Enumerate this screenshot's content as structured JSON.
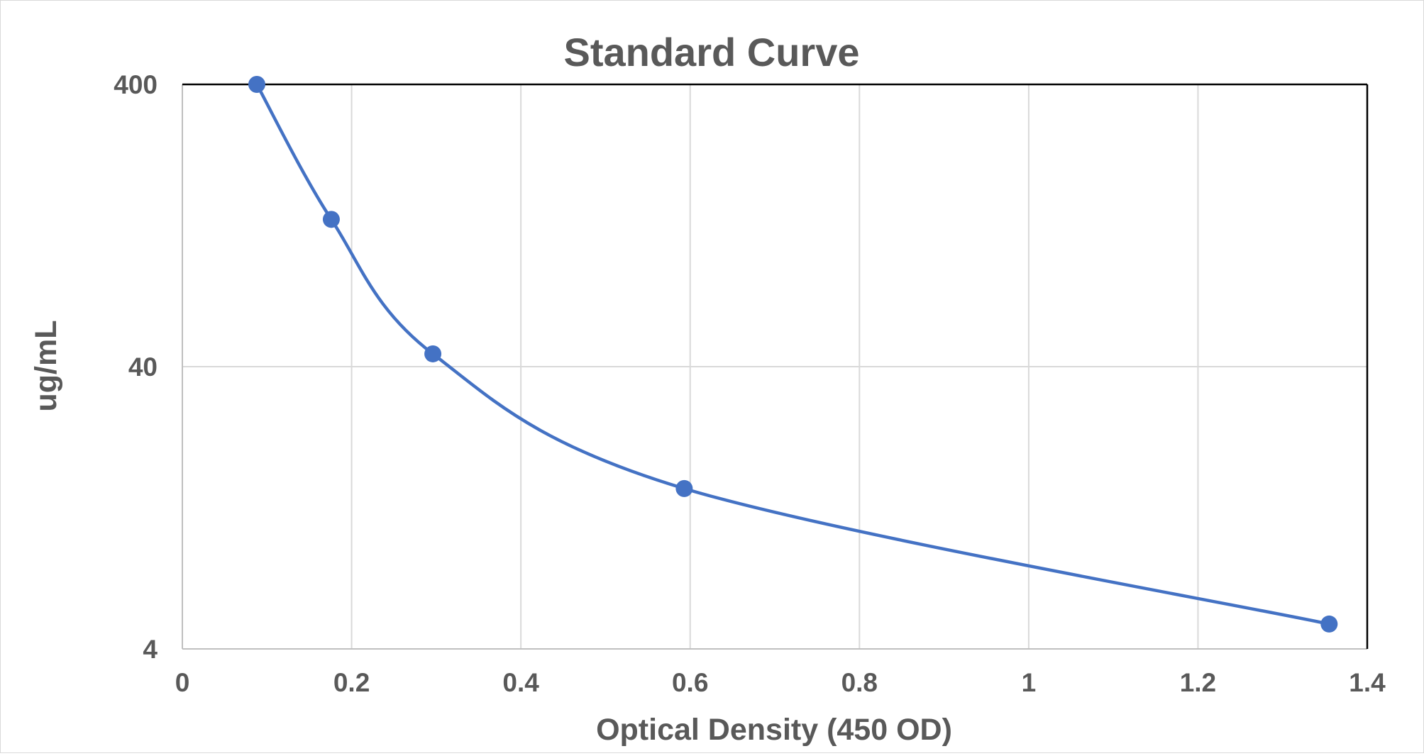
{
  "chart_data": {
    "type": "scatter",
    "title": "Standard Curve",
    "xlabel": "Optical Density (450 OD)",
    "ylabel": "ug/mL",
    "xlim": [
      0,
      1.4
    ],
    "ylim": [
      4,
      400
    ],
    "y_scale": "log",
    "x_ticks": [
      "0",
      "0.2",
      "0.4",
      "0.6",
      "0.8",
      "1",
      "1.2",
      "1.4"
    ],
    "y_ticks": [
      "4",
      "40",
      "400"
    ],
    "grid": true,
    "legend": "none",
    "line": "smoothed",
    "series": [
      {
        "x": [
          0.088,
          0.176,
          0.296,
          0.593,
          1.355
        ],
        "y": [
          400,
          133,
          44.4,
          14.8,
          4.9
        ]
      }
    ],
    "colors": {
      "series": "#4472c4",
      "grid": "#d9d9d9",
      "axis": "#bfbfbf",
      "frame": "#000000",
      "text": "#595959"
    }
  }
}
